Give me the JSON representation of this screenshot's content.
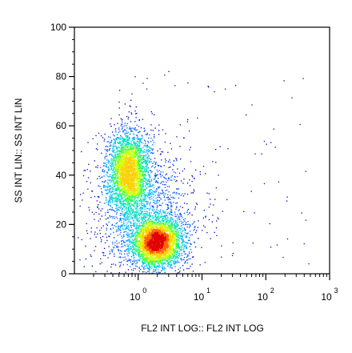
{
  "chart_data": {
    "type": "scatter",
    "style": "density dot plot (flow cytometry)",
    "title": "",
    "xlabel": "FL2 INT LOG:: FL2 INT LOG",
    "ylabel": "SS INT LIN:: SS INT LIN",
    "x_scale": "log",
    "x_range_decades": [
      -1,
      3
    ],
    "x_ticks": [
      {
        "base": "10",
        "exp": "0",
        "value": 1
      },
      {
        "base": "10",
        "exp": "1",
        "value": 10
      },
      {
        "base": "10",
        "exp": "2",
        "value": 100
      },
      {
        "base": "10",
        "exp": "3",
        "value": 1000
      }
    ],
    "y_scale": "linear",
    "ylim": [
      0,
      100
    ],
    "y_ticks": [
      "0",
      "20",
      "40",
      "60",
      "80",
      "100"
    ],
    "grid": false,
    "legend": "none",
    "colormap": [
      "#0000c8",
      "#0050ff",
      "#00b4ff",
      "#00e0c0",
      "#40ff40",
      "#d0ff00",
      "#ffd000",
      "#ff6000",
      "#e00000"
    ],
    "populations": [
      {
        "x_center": 0.7,
        "x_spread_decades": 0.16,
        "y_center": 41,
        "y_spread": 8.5,
        "events": 3200
      },
      {
        "x_center": 1.9,
        "x_spread_decades": 0.2,
        "y_center": 13,
        "y_spread": 5,
        "events": 3600
      },
      {
        "x_center": 1.2,
        "x_spread_decades": 0.42,
        "y_center": 25,
        "y_spread": 14,
        "events": 1500
      }
    ]
  }
}
